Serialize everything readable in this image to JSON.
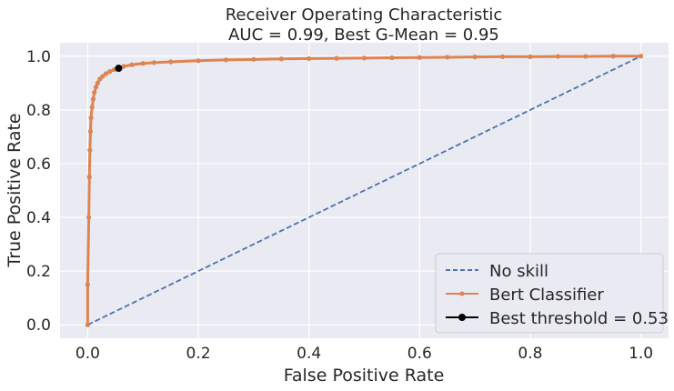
{
  "chart_data": {
    "type": "line",
    "title": "Receiver Operating Characteristic",
    "subtitle": "AUC = 0.99, Best G-Mean = 0.95",
    "xlabel": "False Positive Rate",
    "ylabel": "True Positive Rate",
    "xlim": [
      -0.05,
      1.05
    ],
    "ylim": [
      -0.05,
      1.05
    ],
    "xticks": [
      "0.0",
      "0.2",
      "0.4",
      "0.6",
      "0.8",
      "1.0"
    ],
    "yticks": [
      "0.0",
      "0.2",
      "0.4",
      "0.6",
      "0.8",
      "1.0"
    ],
    "grid": true,
    "legend_position": "lower-right",
    "series": [
      {
        "name": "No skill",
        "style": "dashed",
        "color": "#4c72b0",
        "x": [
          0,
          1
        ],
        "y": [
          0,
          1
        ]
      },
      {
        "name": "Bert Classifier",
        "style": "solid-markers",
        "color": "#dd8452",
        "x": [
          0.0,
          0.0,
          0.002,
          0.003,
          0.004,
          0.005,
          0.006,
          0.008,
          0.01,
          0.012,
          0.015,
          0.018,
          0.022,
          0.027,
          0.033,
          0.04,
          0.048,
          0.055,
          0.065,
          0.08,
          0.1,
          0.12,
          0.15,
          0.2,
          0.25,
          0.3,
          0.35,
          0.4,
          0.45,
          0.5,
          0.55,
          0.6,
          0.65,
          0.7,
          0.75,
          0.8,
          0.85,
          0.9,
          0.95,
          1.0
        ],
        "y": [
          0.0,
          0.15,
          0.4,
          0.55,
          0.65,
          0.72,
          0.77,
          0.81,
          0.84,
          0.865,
          0.885,
          0.9,
          0.915,
          0.925,
          0.935,
          0.943,
          0.95,
          0.955,
          0.962,
          0.968,
          0.973,
          0.976,
          0.979,
          0.983,
          0.986,
          0.988,
          0.99,
          0.991,
          0.992,
          0.993,
          0.994,
          0.995,
          0.996,
          0.997,
          0.998,
          0.998,
          0.999,
          0.999,
          1.0,
          1.0
        ]
      },
      {
        "name": "Best threshold = 0.53",
        "style": "point",
        "color": "#000000",
        "x": [
          0.056
        ],
        "y": [
          0.955
        ]
      }
    ]
  },
  "colors": {
    "background": "#eaeaf2",
    "grid": "#ffffff",
    "no_skill": "#4c72b0",
    "classifier": "#dd8452",
    "best": "#000000"
  }
}
